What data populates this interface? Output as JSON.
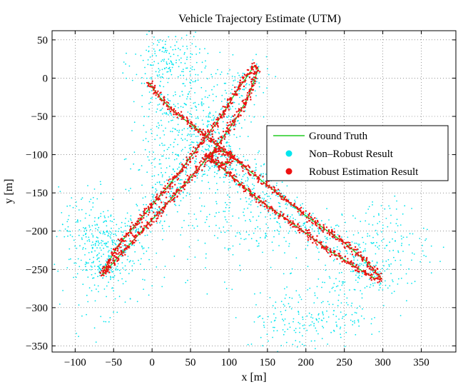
{
  "chart_data": {
    "type": "scatter",
    "title": "Vehicle Trajectory Estimate (UTM)",
    "xlabel": "x [m]",
    "ylabel": "y [m]",
    "xlim": [
      -130,
      395
    ],
    "ylim": [
      -358,
      62
    ],
    "xticks": [
      -100,
      -50,
      0,
      50,
      100,
      150,
      200,
      250,
      300,
      350
    ],
    "yticks": [
      50,
      0,
      -50,
      -100,
      -150,
      -200,
      -250,
      -300,
      -350
    ],
    "grid": true,
    "legend_position": "right-center",
    "series": [
      {
        "name": "Ground Truth",
        "kind": "line",
        "color": "#22cc22",
        "paths": [
          [
            [
              -65,
              -258
            ],
            [
              -45,
              -235
            ],
            [
              0,
              -185
            ],
            [
              50,
              -130
            ],
            [
              80,
              -95
            ],
            [
              108,
              -55
            ],
            [
              125,
              -25
            ],
            [
              134,
              0
            ],
            [
              138,
              12
            ],
            [
              133,
              16
            ],
            [
              126,
              6
            ],
            [
              108,
              -20
            ],
            [
              90,
              -50
            ],
            [
              60,
              -90
            ],
            [
              30,
              -130
            ],
            [
              -10,
              -178
            ],
            [
              -45,
              -220
            ],
            [
              -62,
              -250
            ],
            [
              -65,
              -258
            ]
          ],
          [
            [
              -5,
              -5
            ],
            [
              10,
              -25
            ],
            [
              30,
              -45
            ],
            [
              70,
              -75
            ],
            [
              100,
              -100
            ],
            [
              150,
              -140
            ],
            [
              200,
              -180
            ],
            [
              250,
              -215
            ],
            [
              282,
              -243
            ],
            [
              298,
              -262
            ],
            [
              290,
              -262
            ],
            [
              270,
              -250
            ],
            [
              230,
              -225
            ],
            [
              190,
              -195
            ],
            [
              140,
              -160
            ],
            [
              100,
              -125
            ],
            [
              75,
              -105
            ],
            [
              70,
              -102
            ]
          ],
          [
            [
              70,
              -102
            ],
            [
              88,
              -95
            ],
            [
              105,
              -100
            ],
            [
              98,
              -112
            ],
            [
              82,
              -110
            ],
            [
              70,
              -102
            ]
          ]
        ]
      },
      {
        "name": "Non–Robust Result",
        "kind": "scatter",
        "color": "#00e5ee",
        "clouds": [
          {
            "cx": -60,
            "cy": -235,
            "sx": 28,
            "sy": 35,
            "n": 260
          },
          {
            "cx": 20,
            "cy": 20,
            "sx": 22,
            "sy": 22,
            "n": 170
          },
          {
            "cx": 55,
            "cy": -40,
            "sx": 25,
            "sy": 35,
            "n": 170
          },
          {
            "cx": 120,
            "cy": -180,
            "sx": 45,
            "sy": 40,
            "n": 220
          },
          {
            "cx": 190,
            "cy": -320,
            "sx": 35,
            "sy": 18,
            "n": 130
          },
          {
            "cx": 300,
            "cy": -220,
            "sx": 30,
            "sy": 32,
            "n": 170
          },
          {
            "cx": 10,
            "cy": -110,
            "sx": 22,
            "sy": 40,
            "n": 130
          },
          {
            "cx": 240,
            "cy": -290,
            "sx": 35,
            "sy": 25,
            "n": 110
          },
          {
            "cx": -80,
            "cy": -195,
            "sx": 20,
            "sy": 25,
            "n": 100
          }
        ]
      },
      {
        "name": "Robust Estimation Result",
        "kind": "scatter",
        "color": "#ee1111"
      }
    ]
  }
}
